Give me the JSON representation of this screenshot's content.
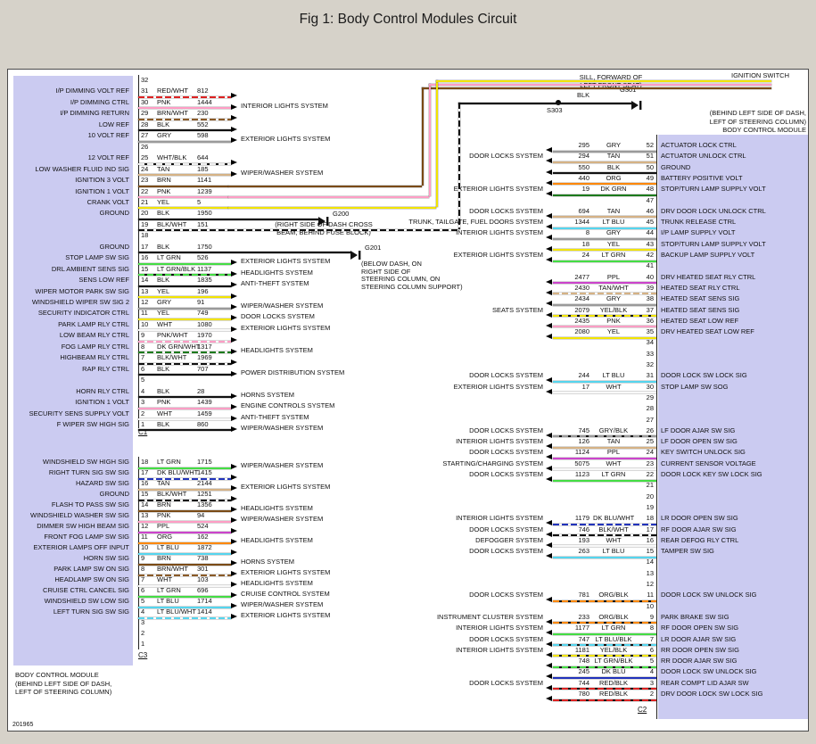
{
  "title": "Fig 1: Body Control Modules Circuit",
  "doc_number": "201965",
  "connectors": {
    "c1": "C1",
    "c2": "C2",
    "c3": "C3"
  },
  "left_module_caption": [
    "BODY CONTROL MODULE",
    "(BEHIND LEFT SIDE OF DASH,",
    "LEFT OF STEERING COLUMN)"
  ],
  "right_module_caption": [
    "(BEHIND LEFT SIDE OF DASH,",
    "LEFT OF STEERING COLUMN)",
    "BODY CONTROL MODULE"
  ],
  "top_area": {
    "sill_note": [
      "SILL, FORWARD OF",
      "LEFT FRONT SEAT)"
    ],
    "ignition_switch": "IGNITION SWITCH",
    "s303": "S303",
    "blk": "BLK",
    "g301": "G301",
    "g200_note": [
      "(RIGHT SIDE OF DASH CROSS",
      "BEAM, BEHIND FUSE BLOCK)"
    ],
    "g201_note": [
      "(BELOW DASH, ON",
      "RIGHT SIDE OF",
      "STEERING COLUMN, ON",
      "STEERING COLUMN SUPPORT)"
    ]
  },
  "wire_colors": {
    "RED/WHT": [
      "#dd2222",
      "#ffffff"
    ],
    "RED/BLK": [
      "#dd2222",
      "#111111"
    ],
    "PNK": [
      "#ff9dc5",
      null
    ],
    "PNK/WHT": [
      "#ff9dc5",
      "#ffffff"
    ],
    "BRN": [
      "#7a4a15",
      null
    ],
    "BRN/WHT": [
      "#8a5a28",
      "#ffffff"
    ],
    "BLK": [
      "#111111",
      null
    ],
    "BLK/WHT": [
      "#111111",
      "#ffffff"
    ],
    "GRY": [
      "#9a9a9a",
      null
    ],
    "GRY/BLK": [
      "#9a9a9a",
      "#111111"
    ],
    "WHT": [
      "#f8f8f8",
      null
    ],
    "WHT/BLK": [
      "#eeeeee",
      "#111111"
    ],
    "TAN": [
      "#d5b285",
      null
    ],
    "TAN/WHT": [
      "#d5b285",
      "#ffffff"
    ],
    "YEL": [
      "#f2e400",
      null
    ],
    "YEL/BLK": [
      "#f2e400",
      "#111111"
    ],
    "LT GRN": [
      "#44dd44",
      null
    ],
    "LT GRN/BLK": [
      "#44dd44",
      "#111111"
    ],
    "DK GRN": [
      "#1c7a1c",
      null
    ],
    "DK GRN/WHT": [
      "#1c7a1c",
      "#ffffff"
    ],
    "LT BLU": [
      "#55d5ee",
      null
    ],
    "LT BLU/WHT": [
      "#55d5ee",
      "#ffffff"
    ],
    "LT BLU/BLK": [
      "#55d5ee",
      "#111111"
    ],
    "DK BLU": [
      "#2233bb",
      null
    ],
    "DK BLU/WHT": [
      "#2233bb",
      "#ffffff"
    ],
    "PPL": [
      "#cc44cc",
      null
    ],
    "ORG": [
      "#ff8800",
      null
    ],
    "ORG/BLK": [
      "#ff8800",
      "#111111"
    ]
  },
  "c1_rows": [
    {
      "pin": "32"
    },
    {
      "pin": "31",
      "color": "RED/WHT",
      "circuit": "812",
      "label": "I/P DIMMING VOLT REF"
    },
    {
      "pin": "30",
      "color": "PNK",
      "circuit": "1444",
      "label": "I/P DIMMING CTRL",
      "sys": "INTERIOR LIGHTS SYSTEM"
    },
    {
      "pin": "29",
      "color": "BRN/WHT",
      "circuit": "230",
      "label": "I/P DIMMING RETURN"
    },
    {
      "pin": "28",
      "color": "BLK",
      "circuit": "552",
      "label": "LOW REF"
    },
    {
      "pin": "27",
      "color": "GRY",
      "circuit": "598",
      "label": "10 VOLT REF",
      "sys": "EXTERIOR LIGHTS SYSTEM"
    },
    {
      "pin": "26"
    },
    {
      "pin": "25",
      "color": "WHT/BLK",
      "circuit": "644",
      "label": "12 VOLT REF"
    },
    {
      "pin": "24",
      "color": "TAN",
      "circuit": "185",
      "label": "LOW WASHER FLUID IND SIG",
      "sys": "WIPER/WASHER SYSTEM"
    },
    {
      "pin": "23",
      "color": "BRN",
      "circuit": "1141",
      "label": "IGNITION 3 VOLT",
      "long": true
    },
    {
      "pin": "22",
      "color": "PNK",
      "circuit": "1239",
      "label": "IGNITION 1 VOLT",
      "long": true
    },
    {
      "pin": "21",
      "color": "YEL",
      "circuit": "5",
      "label": "CRANK VOLT",
      "long": true
    },
    {
      "pin": "20",
      "color": "BLK",
      "circuit": "1950",
      "label": "GROUND",
      "gnd": "G200"
    },
    {
      "pin": "19",
      "color": "BLK/WHT",
      "circuit": "151",
      "long": true
    },
    {
      "pin": "18"
    },
    {
      "pin": "17",
      "color": "BLK",
      "circuit": "1750",
      "label": "GROUND",
      "gnd": "G201"
    },
    {
      "pin": "16",
      "color": "LT GRN",
      "circuit": "526",
      "label": "STOP LAMP SW SIG",
      "sys": "EXTERIOR LIGHTS SYSTEM"
    },
    {
      "pin": "15",
      "color": "LT GRN/BLK",
      "circuit": "1137",
      "label": "DRL AMBIENT SENS SIG",
      "sys": "HEADLIGHTS SYSTEM"
    },
    {
      "pin": "14",
      "color": "BLK",
      "circuit": "1835",
      "label": "SENS LOW REF",
      "sys": "ANTI-THEFT SYSTEM"
    },
    {
      "pin": "13",
      "color": "YEL",
      "circuit": "196",
      "label": "WIPER MOTOR PARK SW SIG"
    },
    {
      "pin": "12",
      "color": "GRY",
      "circuit": "91",
      "label": "WINDSHIELD WIPER SW SIG 2",
      "sys": "WIPER/WASHER SYSTEM"
    },
    {
      "pin": "11",
      "color": "YEL",
      "circuit": "749",
      "label": "SECURITY INDICATOR CTRL",
      "sys": "DOOR LOCKS SYSTEM"
    },
    {
      "pin": "10",
      "color": "WHT",
      "circuit": "1080",
      "label": "PARK LAMP RLY CTRL",
      "sys": "EXTERIOR LIGHTS SYSTEM"
    },
    {
      "pin": "9",
      "color": "PNK/WHT",
      "circuit": "1970",
      "label": "LOW BEAM RLY CTRL"
    },
    {
      "pin": "8",
      "color": "DK GRN/WHT",
      "circuit": "1317",
      "label": "FOG LAMP RLY CTRL",
      "sys": "HEADLIGHTS SYSTEM"
    },
    {
      "pin": "7",
      "color": "BLK/WHT",
      "circuit": "1969",
      "label": "HIGHBEAM RLY CTRL"
    },
    {
      "pin": "6",
      "color": "BLK",
      "circuit": "707",
      "label": "RAP RLY CTRL",
      "sys": "POWER DISTRIBUTION SYSTEM"
    },
    {
      "pin": "5"
    },
    {
      "pin": "4",
      "color": "BLK",
      "circuit": "28",
      "label": "HORN RLY CTRL",
      "sys": "HORNS SYSTEM"
    },
    {
      "pin": "3",
      "color": "PNK",
      "circuit": "1439",
      "label": "IGNITION 1 VOLT",
      "sys": "ENGINE CONTROLS SYSTEM"
    },
    {
      "pin": "2",
      "color": "WHT",
      "circuit": "1459",
      "label": "SECURITY SENS SUPPLY VOLT",
      "sys": "ANTI-THEFT SYSTEM"
    },
    {
      "pin": "1",
      "color": "BLK",
      "circuit": "860",
      "label": "F WIPER SW HIGH SIG",
      "sys": "WIPER/WASHER SYSTEM"
    }
  ],
  "c3_rows": [
    {
      "pin": "18",
      "color": "LT GRN",
      "circuit": "1715",
      "label": "WINDSHIELD SW HIGH SIG",
      "sys": "WIPER/WASHER SYSTEM"
    },
    {
      "pin": "17",
      "color": "DK BLU/WHT",
      "circuit": "1415",
      "label": "RIGHT TURN SIG SW SIG"
    },
    {
      "pin": "16",
      "color": "TAN",
      "circuit": "2144",
      "label": "HAZARD SW SIG",
      "sys": "EXTERIOR LIGHTS SYSTEM"
    },
    {
      "pin": "15",
      "color": "BLK/WHT",
      "circuit": "1251",
      "label": "GROUND"
    },
    {
      "pin": "14",
      "color": "BRN",
      "circuit": "1356",
      "label": "FLASH TO PASS SW SIG",
      "sys": "HEADLIGHTS SYSTEM"
    },
    {
      "pin": "13",
      "color": "PNK",
      "circuit": "94",
      "label": "WINDSHIELD WASHER SW SIG",
      "sys": "WIPER/WASHER SYSTEM"
    },
    {
      "pin": "12",
      "color": "PPL",
      "circuit": "524",
      "label": "DIMMER SW HIGH BEAM SIG"
    },
    {
      "pin": "11",
      "color": "ORG",
      "circuit": "162",
      "label": "FRONT FOG LAMP SW SIG",
      "sys": "HEADLIGHTS SYSTEM"
    },
    {
      "pin": "10",
      "color": "LT BLU",
      "circuit": "1872",
      "label": "EXTERIOR LAMPS OFF INPUT"
    },
    {
      "pin": "9",
      "color": "BRN",
      "circuit": "738",
      "label": "HORN SW SIG",
      "sys": "HORNS SYSTEM"
    },
    {
      "pin": "8",
      "color": "BRN/WHT",
      "circuit": "301",
      "label": "PARK LAMP SW ON SIG",
      "sys": "EXTERIOR LIGHTS SYSTEM"
    },
    {
      "pin": "7",
      "color": "WHT",
      "circuit": "103",
      "label": "HEADLAMP SW ON SIG",
      "sys": "HEADLIGHTS SYSTEM"
    },
    {
      "pin": "6",
      "color": "LT GRN",
      "circuit": "696",
      "label": "CRUISE CTRL CANCEL SIG",
      "sys": "CRUISE CONTROL SYSTEM"
    },
    {
      "pin": "5",
      "color": "LT BLU",
      "circuit": "1714",
      "label": "WINDSHIELD SW LOW SIG",
      "sys": "WIPER/WASHER SYSTEM"
    },
    {
      "pin": "4",
      "color": "LT BLU/WHT",
      "circuit": "1414",
      "label": "LEFT TURN SIG SW SIG",
      "sys": "EXTERIOR LIGHTS SYSTEM"
    },
    {
      "pin": "3"
    },
    {
      "pin": "2"
    },
    {
      "pin": "1"
    }
  ],
  "c2_rows": [
    {
      "pin": "52",
      "circuit": "295",
      "color": "GRY",
      "label": "ACTUATOR LOCK CTRL"
    },
    {
      "pin": "51",
      "sys": "DOOR LOCKS SYSTEM",
      "circuit": "294",
      "color": "TAN",
      "label": "ACTUATOR UNLOCK CTRL"
    },
    {
      "pin": "50",
      "circuit": "550",
      "color": "BLK",
      "label": "GROUND"
    },
    {
      "pin": "49",
      "circuit": "440",
      "color": "ORG",
      "label": "BATTERY POSITIVE VOLT"
    },
    {
      "pin": "48",
      "sys": "EXTERIOR LIGHTS SYSTEM",
      "circuit": "19",
      "color": "DK GRN",
      "label": "STOP/TURN LAMP SUPPLY VOLT"
    },
    {
      "pin": "47"
    },
    {
      "pin": "46",
      "sys": "DOOR LOCKS SYSTEM",
      "circuit": "694",
      "color": "TAN",
      "label": "DRV DOOR LOCK UNLOCK CTRL"
    },
    {
      "pin": "45",
      "sys": "TRUNK, TAILGATE, FUEL DOORS SYSTEM",
      "circuit": "1344",
      "color": "LT BLU",
      "label": "TRUNK RELEASE CTRL"
    },
    {
      "pin": "44",
      "sys": "INTERIOR LIGHTS SYSTEM",
      "circuit": "8",
      "color": "GRY",
      "label": "I/P LAMP SUPPLY VOLT"
    },
    {
      "pin": "43",
      "circuit": "18",
      "color": "YEL",
      "label": "STOP/TURN LAMP SUPPLY VOLT"
    },
    {
      "pin": "42",
      "sys": "EXTERIOR LIGHTS SYSTEM",
      "circuit": "24",
      "color": "LT GRN",
      "label": "BACKUP LAMP SUPPLY VOLT"
    },
    {
      "pin": "41"
    },
    {
      "pin": "40",
      "circuit": "2477",
      "color": "PPL",
      "label": "DRV HEATED SEAT RLY CTRL"
    },
    {
      "pin": "39",
      "circuit": "2430",
      "color": "TAN/WHT",
      "label": "HEATED SEAT RLY CTRL"
    },
    {
      "pin": "38",
      "circuit": "2434",
      "color": "GRY",
      "label": "HEATED SEAT SENS SIG"
    },
    {
      "pin": "37",
      "sys": "SEATS SYSTEM",
      "circuit": "2079",
      "color": "YEL/BLK",
      "label": "HEATED SEAT SENS SIG"
    },
    {
      "pin": "36",
      "circuit": "2435",
      "color": "PNK",
      "label": "HEATED SEAT LOW REF"
    },
    {
      "pin": "35",
      "circuit": "2080",
      "color": "YEL",
      "label": "DRV HEATED SEAT LOW REF"
    },
    {
      "pin": "34"
    },
    {
      "pin": "33"
    },
    {
      "pin": "32"
    },
    {
      "pin": "31",
      "sys": "DOOR LOCKS SYSTEM",
      "circuit": "244",
      "color": "LT BLU",
      "label": "DOOR LOCK SW LOCK SIG"
    },
    {
      "pin": "30",
      "sys": "EXTERIOR LIGHTS SYSTEM",
      "circuit": "17",
      "color": "WHT",
      "label": "STOP LAMP SW SOG"
    },
    {
      "pin": "29"
    },
    {
      "pin": "28"
    },
    {
      "pin": "27"
    },
    {
      "pin": "26",
      "sys": "DOOR LOCKS SYSTEM",
      "circuit": "745",
      "color": "GRY/BLK",
      "label": "LF DOOR AJAR SW SIG"
    },
    {
      "pin": "25",
      "sys": "INTERIOR LIGHTS SYSTEM",
      "circuit": "126",
      "color": "TAN",
      "label": "LF DOOR OPEN SW SIG"
    },
    {
      "pin": "24",
      "sys": "DOOR LOCKS SYSTEM",
      "circuit": "1124",
      "color": "PPL",
      "label": "KEY SWITCH UNLOCK SIG"
    },
    {
      "pin": "23",
      "sys": "STARTING/CHARGING SYSTEM",
      "circuit": "5075",
      "color": "WHT",
      "label": "CURRENT SENSOR VOLTAGE"
    },
    {
      "pin": "22",
      "sys": "DOOR LOCKS SYSTEM",
      "circuit": "1123",
      "color": "LT GRN",
      "label": "DOOR LOCK KEY SW LOCK SIG"
    },
    {
      "pin": "21"
    },
    {
      "pin": "20"
    },
    {
      "pin": "19"
    },
    {
      "pin": "18",
      "sys": "INTERIOR LIGHTS SYSTEM",
      "circuit": "1179",
      "color": "DK BLU/WHT",
      "label": "LR DOOR OPEN SW SIG"
    },
    {
      "pin": "17",
      "sys": "DOOR LOCKS SYSTEM",
      "circuit": "746",
      "color": "BLK/WHT",
      "label": "RF DOOR AJAR SW SIG"
    },
    {
      "pin": "16",
      "sys": "DEFOGGER SYSTEM",
      "circuit": "193",
      "color": "WHT",
      "label": "REAR DEFOG RLY CTRL"
    },
    {
      "pin": "15",
      "sys": "DOOR LOCKS SYSTEM",
      "circuit": "263",
      "color": "LT BLU",
      "label": "TAMPER SW SIG"
    },
    {
      "pin": "14"
    },
    {
      "pin": "13"
    },
    {
      "pin": "12"
    },
    {
      "pin": "11",
      "sys": "DOOR LOCKS SYSTEM",
      "circuit": "781",
      "color": "ORG/BLK",
      "label": "DOOR LOCK SW UNLOCK SIG"
    },
    {
      "pin": "10"
    },
    {
      "pin": "9",
      "sys": "INSTRUMENT CLUSTER SYSTEM",
      "circuit": "233",
      "color": "ORG/BLK",
      "label": "PARK BRAKE SW SIG"
    },
    {
      "pin": "8",
      "sys": "INTERIOR LIGHTS SYSTEM",
      "circuit": "1177",
      "color": "LT GRN",
      "label": "RF DOOR OPEN SW SIG"
    },
    {
      "pin": "7",
      "sys": "DOOR LOCKS SYSTEM",
      "circuit": "747",
      "color": "LT BLU/BLK",
      "label": "LR DOOR AJAR SW SIG"
    },
    {
      "pin": "6",
      "sys": "INTERIOR LIGHTS SYSTEM",
      "circuit": "1181",
      "color": "YEL/BLK",
      "label": "RR DOOR OPEN SW SIG"
    },
    {
      "pin": "5",
      "circuit": "748",
      "color": "LT GRN/BLK",
      "label": "RR DOOR AJAR SW SIG"
    },
    {
      "pin": "4",
      "circuit": "245",
      "color": "DK BLU",
      "label": "DOOR LOCK SW UNLOCK SIG"
    },
    {
      "pin": "3",
      "sys": "DOOR LOCKS SYSTEM",
      "circuit": "744",
      "color": "RED/BLK",
      "label": "REAR COMPT LID AJAR SW"
    },
    {
      "pin": "2",
      "circuit": "780",
      "color": "RED/BLK",
      "label": "DRV DOOR LOCK SW LOCK SIG"
    }
  ],
  "long_wires": [
    {
      "color": "BRN",
      "segs": [
        [
          247,
          130,
          217,
          2
        ],
        [
          464,
          20,
          2,
          110
        ],
        [
          464,
          20,
          392,
          2
        ]
      ]
    },
    {
      "color": "PNK",
      "segs": [
        [
          247,
          142,
          225,
          2
        ],
        [
          472,
          16,
          2,
          126
        ],
        [
          472,
          16,
          384,
          2
        ]
      ]
    },
    {
      "color": "YEL",
      "segs": [
        [
          247,
          154,
          233,
          2
        ],
        [
          480,
          12,
          2,
          142
        ],
        [
          480,
          12,
          376,
          2
        ]
      ]
    },
    {
      "color": "BLK/WHT",
      "segs": [
        [
          247,
          179,
          258,
          2
        ],
        [
          505,
          37,
          2,
          142
        ]
      ]
    },
    {
      "color": "BLK",
      "segs": [
        [
          505,
          37,
          194,
          2
        ]
      ]
    }
  ]
}
